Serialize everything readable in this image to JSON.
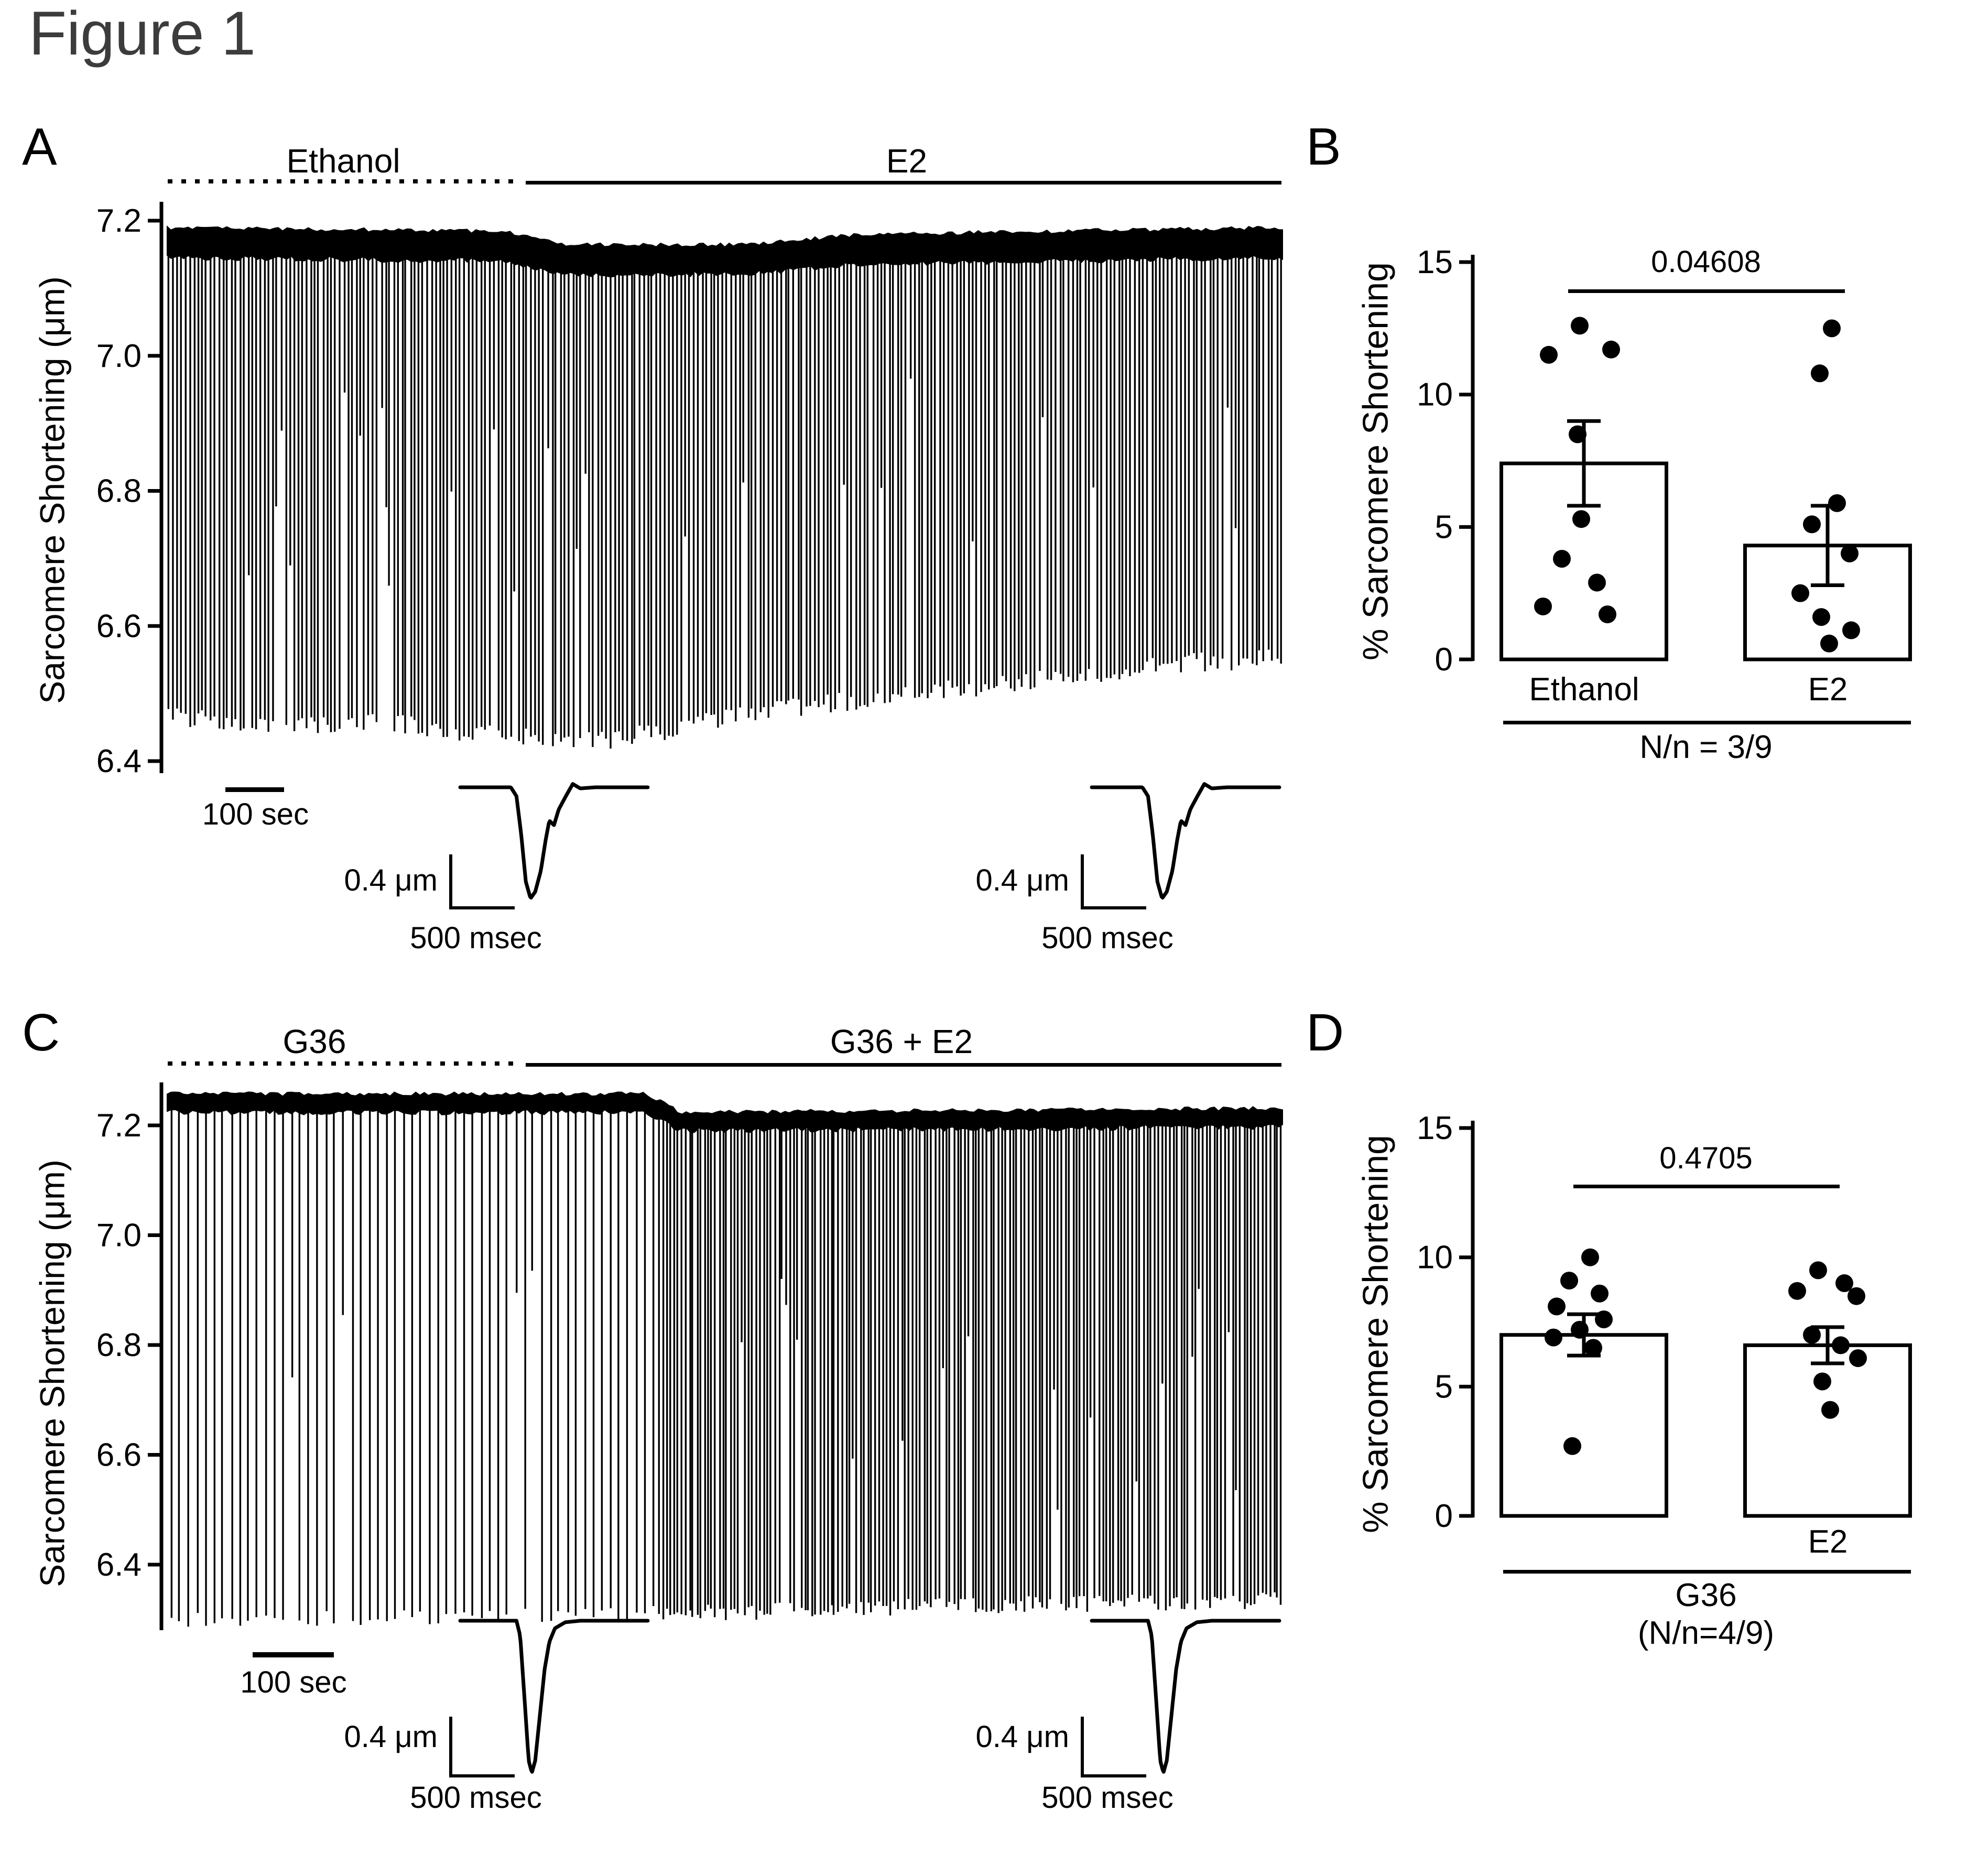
{
  "figure_title": "Figure 1",
  "panels": {
    "A": {
      "letter": "A"
    },
    "B": {
      "letter": "B"
    },
    "C": {
      "letter": "C"
    },
    "D": {
      "letter": "D"
    }
  },
  "chart_data": [
    {
      "type": "line",
      "panel": "A",
      "title": "Sarcomere length trace: Ethanol then E2",
      "ylabel": "Sarcomere Shortening (μm)",
      "ylim": [
        6.4,
        7.25
      ],
      "yticks": [
        "7.2",
        "7.0",
        "6.8",
        "6.6",
        "6.4"
      ],
      "ytick_values": [
        7.2,
        7.0,
        6.8,
        6.6,
        6.4
      ],
      "treatments": [
        {
          "label": "Ethanol",
          "line_style": "dotted",
          "span_fraction": [
            0,
            0.315
          ]
        },
        {
          "label": "E2",
          "line_style": "solid",
          "span_fraction": [
            0.32,
            1
          ]
        }
      ],
      "time_scalebar": "100 sec",
      "baseline_envelope": [
        [
          0,
          7.19
        ],
        [
          0.3,
          7.185
        ],
        [
          0.36,
          7.165
        ],
        [
          0.52,
          7.165
        ],
        [
          0.62,
          7.18
        ],
        [
          0.8,
          7.185
        ],
        [
          1,
          7.19
        ]
      ],
      "peak_envelope": [
        [
          0,
          6.465
        ],
        [
          0.1,
          6.455
        ],
        [
          0.22,
          6.455
        ],
        [
          0.3,
          6.435
        ],
        [
          0.4,
          6.43
        ],
        [
          0.5,
          6.465
        ],
        [
          0.62,
          6.49
        ],
        [
          0.75,
          6.515
        ],
        [
          0.88,
          6.54
        ],
        [
          1,
          6.555
        ]
      ],
      "beat_segments": [
        [
          0,
          1,
          268
        ]
      ],
      "band_thickness_um": 0.045,
      "insets": {
        "amp_label": "0.4 μm",
        "time_label": "500 msec",
        "shape": [
          [
            0,
            0
          ],
          [
            0.27,
            0
          ],
          [
            0.3,
            0.08
          ],
          [
            0.325,
            0.42
          ],
          [
            0.35,
            0.85
          ],
          [
            0.375,
            1
          ],
          [
            0.4,
            0.94
          ],
          [
            0.43,
            0.75
          ],
          [
            0.455,
            0.48
          ],
          [
            0.475,
            0.3
          ],
          [
            0.5,
            0.34
          ],
          [
            0.525,
            0.2
          ],
          [
            0.56,
            0.09
          ],
          [
            0.6,
            -0.03
          ],
          [
            0.64,
            0.01
          ],
          [
            0.72,
            0
          ],
          [
            1,
            0
          ]
        ]
      }
    },
    {
      "type": "bar",
      "panel": "B",
      "title": "% Sarcomere Shortening: Ethanol vs E2",
      "ylabel": "% Sarcomere Shortening",
      "ylim": [
        0,
        15
      ],
      "yticks": [
        "0",
        "5",
        "10",
        "15"
      ],
      "ytick_values": [
        0,
        5,
        10,
        15
      ],
      "categories": [
        "Ethanol",
        "E2"
      ],
      "means": [
        7.4,
        4.3
      ],
      "sems": [
        1.6,
        1.5
      ],
      "points": [
        [
          11.5,
          12.6,
          11.7,
          8.5,
          5.3,
          3.8,
          2.9,
          2.0,
          1.7
        ],
        [
          12.5,
          10.8,
          5.9,
          5.1,
          4.0,
          2.5,
          1.6,
          1.1,
          0.6
        ]
      ],
      "point_offsets": [
        [
          -67,
          -8,
          52,
          -12,
          -5,
          -42,
          25,
          -78,
          45
        ],
        [
          8,
          -15,
          18,
          -30,
          42,
          -52,
          -12,
          45,
          3
        ]
      ],
      "p_value": "0.04608",
      "n_label": "N/n = 3/9"
    },
    {
      "type": "line",
      "panel": "C",
      "title": "Sarcomere length trace: G36 then G36 + E2",
      "ylabel": "Sarcomere Shortening (μm)",
      "ylim": [
        6.25,
        7.3
      ],
      "yticks": [
        "7.2",
        "7.0",
        "6.8",
        "6.6",
        "6.4"
      ],
      "ytick_values": [
        7.2,
        7.0,
        6.8,
        6.6,
        6.4
      ],
      "treatments": [
        {
          "label": "G36",
          "line_style": "dotted",
          "span_fraction": [
            0,
            0.315
          ]
        },
        {
          "label": "G36 + E2",
          "line_style": "solid",
          "span_fraction": [
            0.32,
            1
          ]
        }
      ],
      "time_scalebar": "100 sec",
      "baseline_envelope": [
        [
          0,
          7.258
        ],
        [
          0.43,
          7.258
        ],
        [
          0.46,
          7.225
        ],
        [
          0.75,
          7.228
        ],
        [
          1,
          7.232
        ]
      ],
      "peak_envelope": [
        [
          0,
          6.3
        ],
        [
          0.2,
          6.305
        ],
        [
          0.45,
          6.31
        ],
        [
          0.7,
          6.325
        ],
        [
          1,
          6.335
        ]
      ],
      "beat_segments": [
        [
          0,
          0.44,
          57
        ],
        [
          0.44,
          1,
          168
        ]
      ],
      "band_thickness_um": 0.035,
      "insets": {
        "amp_label": "0.4 μm",
        "time_label": "500 msec",
        "shape": [
          [
            0,
            0
          ],
          [
            0.3,
            0
          ],
          [
            0.32,
            0.1
          ],
          [
            0.345,
            0.55
          ],
          [
            0.365,
            0.92
          ],
          [
            0.382,
            1
          ],
          [
            0.4,
            0.92
          ],
          [
            0.425,
            0.62
          ],
          [
            0.45,
            0.32
          ],
          [
            0.475,
            0.14
          ],
          [
            0.505,
            0.05
          ],
          [
            0.56,
            0.01
          ],
          [
            0.64,
            0
          ],
          [
            1,
            0
          ]
        ]
      }
    },
    {
      "type": "bar",
      "panel": "D",
      "title": "% Sarcomere Shortening: G36 vs G36 + E2",
      "ylabel": "% Sarcomere Shortening",
      "ylim": [
        0,
        15
      ],
      "yticks": [
        "0",
        "5",
        "10",
        "15"
      ],
      "ytick_values": [
        0,
        5,
        10,
        15
      ],
      "categories": [
        "",
        "E2"
      ],
      "group_label": "G36",
      "means": [
        7.0,
        6.6
      ],
      "sems": [
        0.8,
        0.7
      ],
      "points": [
        [
          10.0,
          9.1,
          8.6,
          8.1,
          7.6,
          7.2,
          6.9,
          6.5,
          2.7
        ],
        [
          9.5,
          9.0,
          8.7,
          8.5,
          7.0,
          6.6,
          6.1,
          5.2,
          4.1
        ]
      ],
      "point_offsets": [
        [
          12,
          -28,
          30,
          -52,
          38,
          -8,
          -58,
          18,
          -22
        ],
        [
          -18,
          32,
          -58,
          55,
          -30,
          25,
          58,
          -10,
          5
        ]
      ],
      "p_value": "0.4705",
      "n_label": "(N/n=4/9)"
    }
  ]
}
